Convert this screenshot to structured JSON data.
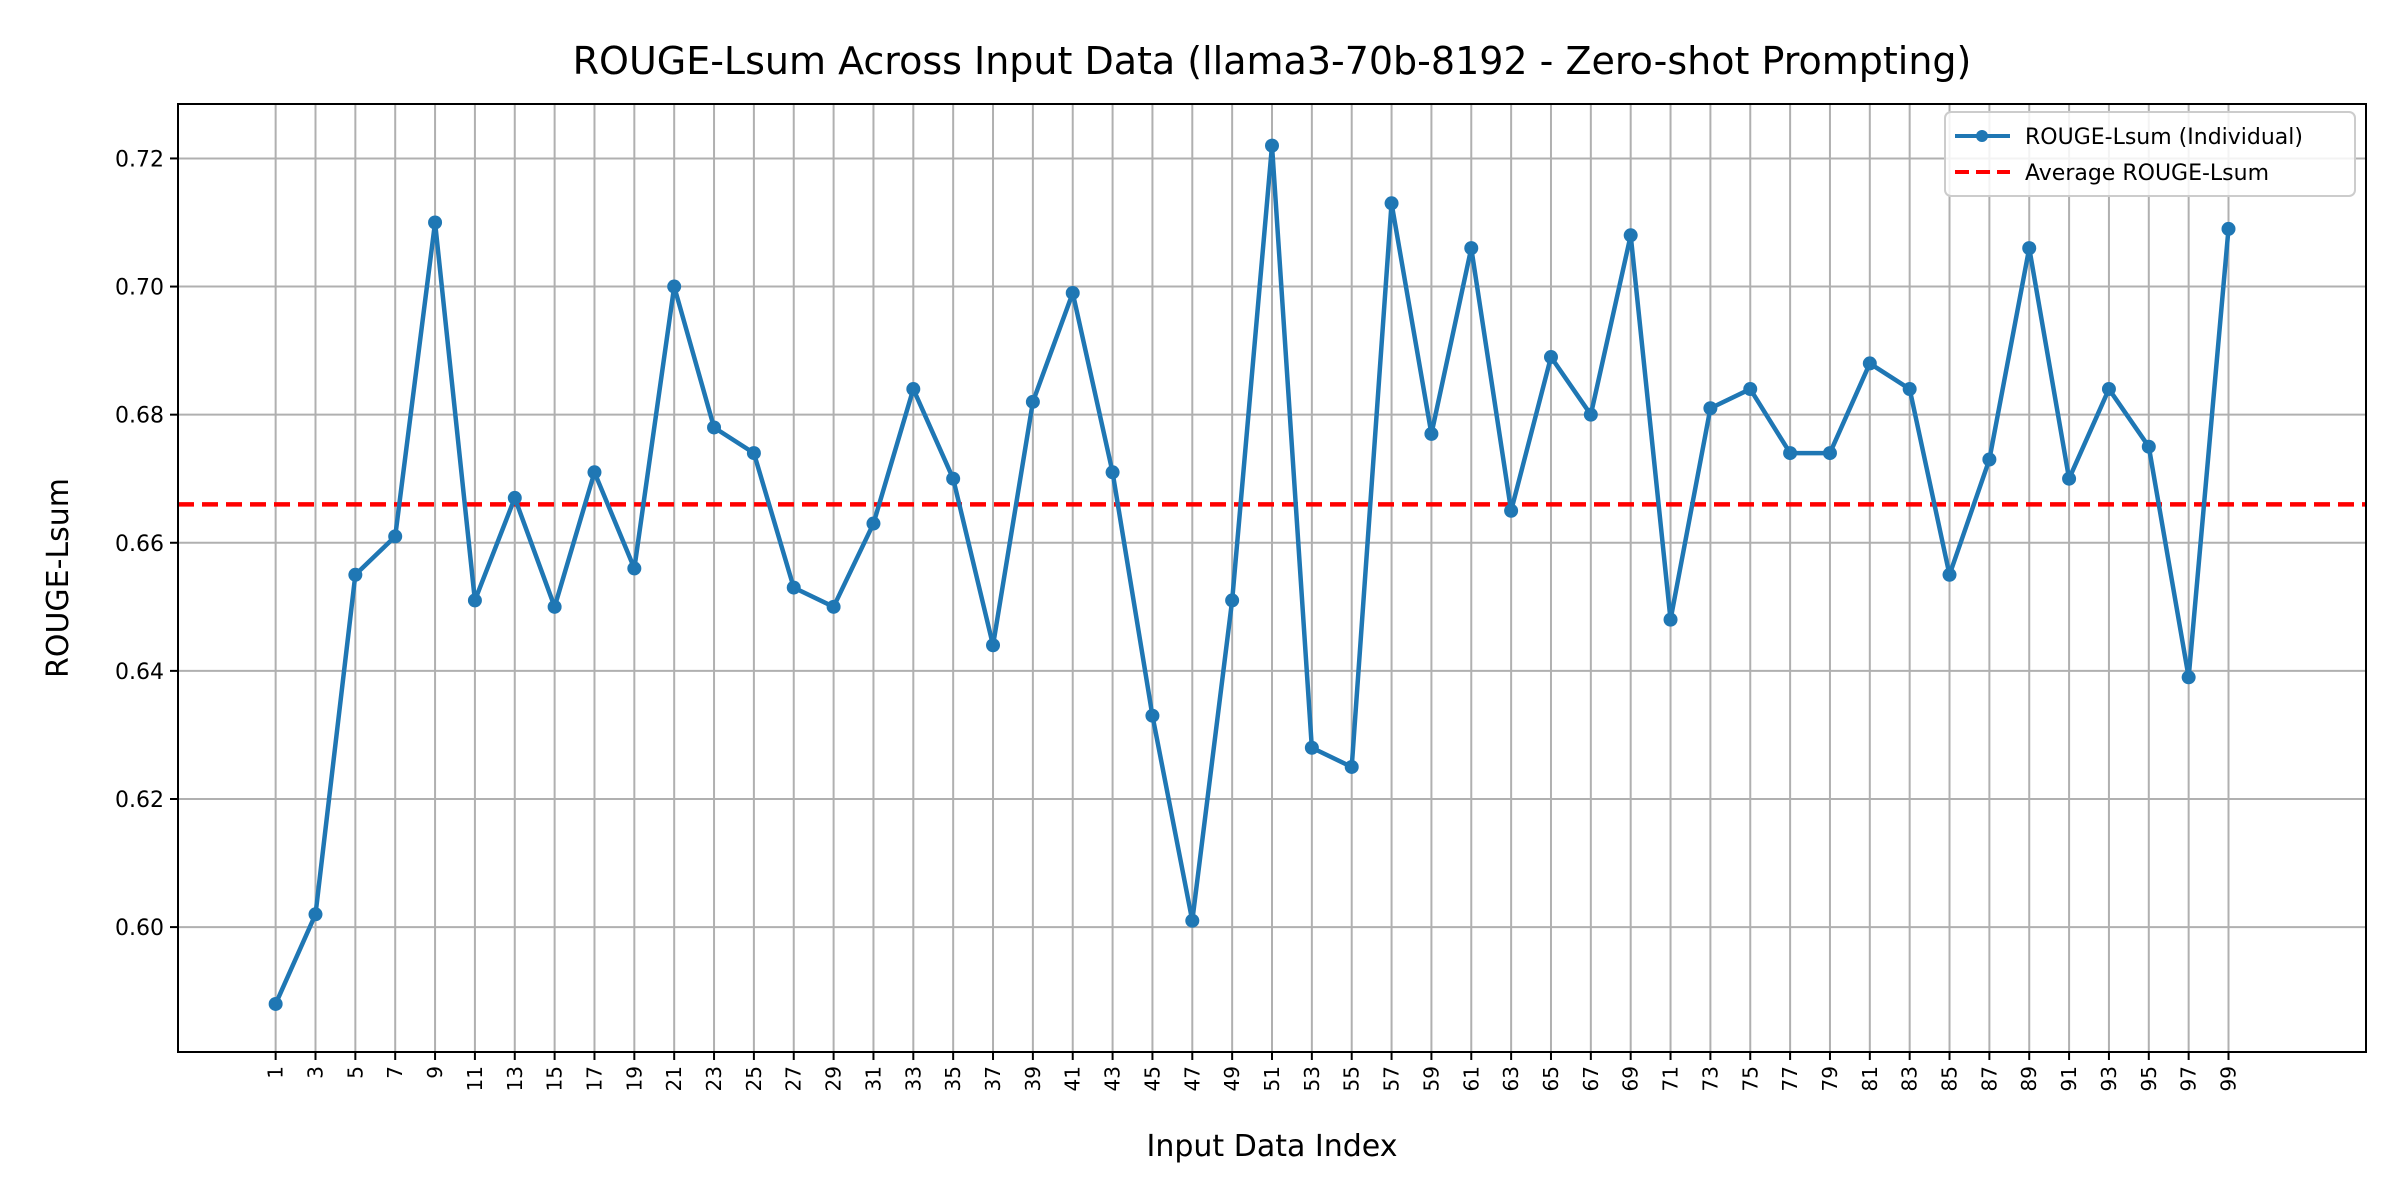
{
  "chart_data": {
    "type": "line",
    "title": "ROUGE-Lsum Across Input Data (llama3-70b-8192 - Zero-shot Prompting)",
    "xlabel": "Input Data Index",
    "ylabel": "ROUGE-Lsum",
    "xlim": [
      -3.9,
      105.9
    ],
    "ylim": [
      0.5805,
      0.7285
    ],
    "grid": true,
    "legend_position": "top-right",
    "x_ticks": [
      1,
      3,
      5,
      7,
      9,
      11,
      13,
      15,
      17,
      19,
      21,
      23,
      25,
      27,
      29,
      31,
      33,
      35,
      37,
      39,
      41,
      43,
      45,
      47,
      49,
      51,
      53,
      55,
      57,
      59,
      61,
      63,
      65,
      67,
      69,
      71,
      73,
      75,
      77,
      79,
      81,
      83,
      85,
      87,
      89,
      91,
      93,
      95,
      97,
      99
    ],
    "y_ticks": [
      0.6,
      0.62,
      0.64,
      0.66,
      0.68,
      0.7,
      0.72
    ],
    "y_tick_labels": [
      "0.60",
      "0.62",
      "0.64",
      "0.66",
      "0.68",
      "0.70",
      "0.72"
    ],
    "series": [
      {
        "name": "ROUGE-Lsum (Individual)",
        "color": "#1f77b4",
        "style": "solid-with-markers",
        "x": [
          1,
          3,
          5,
          7,
          9,
          11,
          13,
          15,
          17,
          19,
          21,
          23,
          25,
          27,
          29,
          31,
          33,
          35,
          37,
          39,
          41,
          43,
          45,
          47,
          49,
          51,
          53,
          55,
          57,
          59,
          61,
          63,
          65,
          67,
          69,
          71,
          73,
          75,
          77,
          79,
          81,
          83,
          85,
          87,
          89,
          91,
          93,
          95,
          97,
          99
        ],
        "values": [
          0.588,
          0.602,
          0.655,
          0.661,
          0.71,
          0.651,
          0.667,
          0.65,
          0.671,
          0.656,
          0.7,
          0.678,
          0.674,
          0.653,
          0.65,
          0.663,
          0.684,
          0.67,
          0.644,
          0.682,
          0.699,
          0.671,
          0.633,
          0.601,
          0.651,
          0.722,
          0.628,
          0.625,
          0.713,
          0.677,
          0.706,
          0.665,
          0.689,
          0.68,
          0.708,
          0.648,
          0.681,
          0.684,
          0.674,
          0.674,
          0.688,
          0.684,
          0.655,
          0.673,
          0.706,
          0.67,
          0.684,
          0.675,
          0.639,
          0.709
        ]
      },
      {
        "name": "Average ROUGE-Lsum",
        "color": "#ff0000",
        "style": "dashed",
        "value": 0.666
      }
    ]
  }
}
